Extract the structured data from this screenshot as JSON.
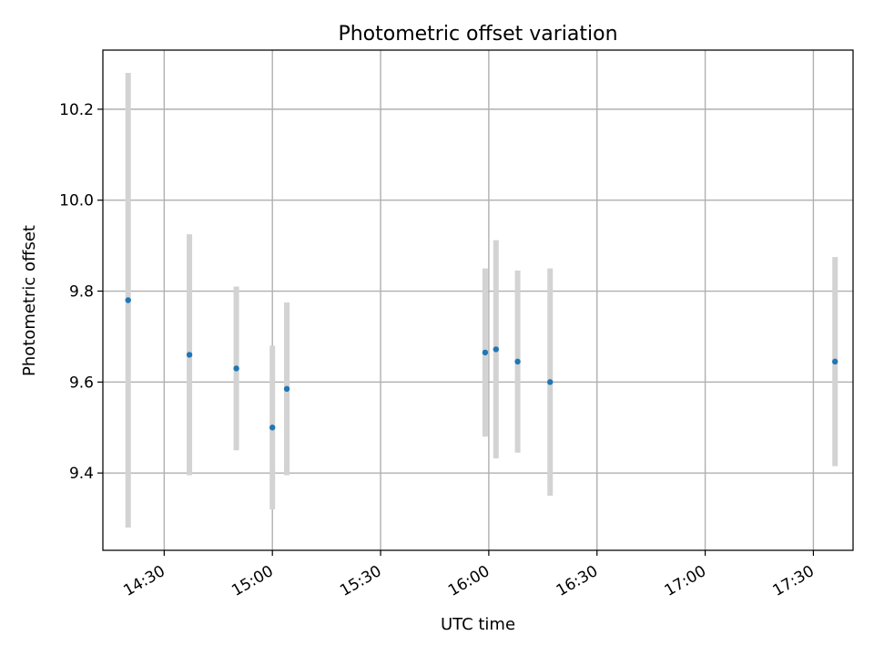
{
  "chart_data": {
    "type": "scatter",
    "title": "Photometric offset variation",
    "xlabel": "UTC time",
    "ylabel": "Photometric offset",
    "x_ticks": [
      "14:30",
      "15:00",
      "15:30",
      "16:00",
      "16:30",
      "17:00",
      "17:30"
    ],
    "y_ticks": [
      "9.4",
      "9.6",
      "9.8",
      "10.0",
      "10.2"
    ],
    "xlim": [
      "14:13",
      "17:41"
    ],
    "ylim": [
      9.23,
      10.33
    ],
    "grid": true,
    "legend": false,
    "colors": {
      "points": "#1f77b4",
      "error_bars": "#d3d3d3"
    },
    "points": [
      {
        "x": "14:20",
        "y": 9.78,
        "yerr": 0.5
      },
      {
        "x": "14:37",
        "y": 9.66,
        "yerr": 0.265
      },
      {
        "x": "14:50",
        "y": 9.63,
        "yerr": 0.18
      },
      {
        "x": "15:00",
        "y": 9.5,
        "yerr": 0.18
      },
      {
        "x": "15:04",
        "y": 9.585,
        "yerr": 0.19
      },
      {
        "x": "15:59",
        "y": 9.665,
        "yerr": 0.185
      },
      {
        "x": "16:02",
        "y": 9.672,
        "yerr": 0.24
      },
      {
        "x": "16:08",
        "y": 9.645,
        "yerr": 0.2
      },
      {
        "x": "16:17",
        "y": 9.6,
        "yerr": 0.25
      },
      {
        "x": "17:36",
        "y": 9.645,
        "yerr": 0.23
      }
    ]
  }
}
